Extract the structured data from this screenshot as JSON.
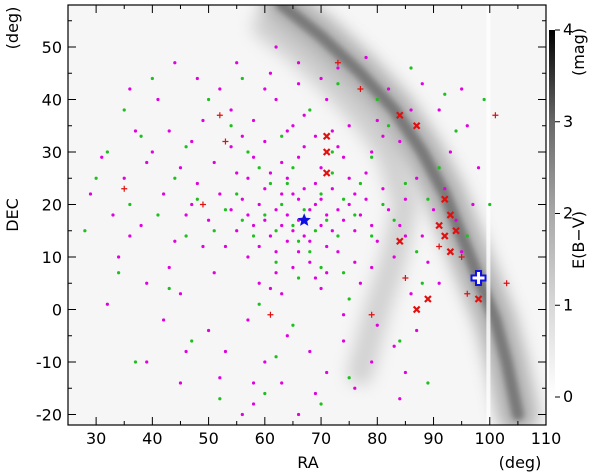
{
  "chart_data": {
    "type": "scatter",
    "xlabel": "RA",
    "ylabel": "DEC",
    "x_unit": "(deg)",
    "y_unit": "(deg)",
    "xlim": [
      25,
      110
    ],
    "ylim": [
      -22,
      58
    ],
    "x_ticks": [
      30,
      40,
      50,
      60,
      70,
      80,
      90,
      100,
      110
    ],
    "y_ticks": [
      -20,
      -10,
      0,
      10,
      20,
      30,
      40,
      50
    ],
    "background": "E(B-V) dust extinction map, greyscale",
    "colorbar": {
      "label": "E(B−V)",
      "unit": "(mag)",
      "range": [
        0,
        4
      ],
      "ticks": [
        0,
        1,
        2,
        3,
        4
      ]
    },
    "colors": {
      "magenta": "#e000e0",
      "green": "#1fbf1f",
      "red": "#e01010",
      "blue": "#1010e0"
    },
    "series": [
      {
        "marker": "dot",
        "color": "magenta",
        "points": [
          [
            66,
            17
          ],
          [
            64,
            18
          ],
          [
            68,
            19
          ],
          [
            65,
            15
          ],
          [
            70,
            16
          ],
          [
            67,
            14
          ],
          [
            63,
            16
          ],
          [
            69,
            20
          ],
          [
            66,
            21
          ],
          [
            71,
            18
          ],
          [
            62,
            19
          ],
          [
            65,
            22
          ],
          [
            68,
            13
          ],
          [
            72,
            15
          ],
          [
            60,
            17
          ],
          [
            64,
            13
          ],
          [
            70,
            21
          ],
          [
            73,
            19
          ],
          [
            61,
            14
          ],
          [
            67,
            23
          ],
          [
            59,
            20
          ],
          [
            63,
            22
          ],
          [
            74,
            17
          ],
          [
            66,
            11
          ],
          [
            71,
            12
          ],
          [
            58,
            16
          ],
          [
            75,
            20
          ],
          [
            62,
            11
          ],
          [
            69,
            24
          ],
          [
            64,
            25
          ],
          [
            57,
            18
          ],
          [
            76,
            15
          ],
          [
            60,
            23
          ],
          [
            72,
            23
          ],
          [
            68,
            9
          ],
          [
            55,
            15
          ],
          [
            77,
            18
          ],
          [
            61,
            26
          ],
          [
            73,
            11
          ],
          [
            65,
            8
          ],
          [
            56,
            21
          ],
          [
            78,
            21
          ],
          [
            59,
            12
          ],
          [
            70,
            27
          ],
          [
            63,
            28
          ],
          [
            54,
            19
          ],
          [
            79,
            16
          ],
          [
            66,
            29
          ],
          [
            75,
            25
          ],
          [
            57,
            10
          ],
          [
            52,
            22
          ],
          [
            80,
            13
          ],
          [
            62,
            7
          ],
          [
            71,
            7
          ],
          [
            55,
            26
          ],
          [
            78,
            26
          ],
          [
            58,
            29
          ],
          [
            67,
            31
          ],
          [
            74,
            29
          ],
          [
            50,
            17
          ],
          [
            82,
            19
          ],
          [
            53,
            12
          ],
          [
            81,
            23
          ],
          [
            60,
            32
          ],
          [
            69,
            33
          ],
          [
            76,
            9
          ],
          [
            48,
            24
          ],
          [
            84,
            16
          ],
          [
            64,
            34
          ],
          [
            72,
            34
          ],
          [
            51,
            28
          ],
          [
            79,
            30
          ],
          [
            56,
            33
          ],
          [
            46,
            18
          ],
          [
            85,
            21
          ],
          [
            63,
            3
          ],
          [
            70,
            4
          ],
          [
            49,
            12
          ],
          [
            83,
            10
          ],
          [
            58,
            36
          ],
          [
            67,
            37
          ],
          [
            75,
            35
          ],
          [
            45,
            27
          ],
          [
            87,
            25
          ],
          [
            54,
            38
          ],
          [
            80,
            36
          ],
          [
            62,
            40
          ],
          [
            44,
            13
          ],
          [
            88,
            14
          ],
          [
            71,
            40
          ],
          [
            47,
            32
          ],
          [
            84,
            32
          ],
          [
            59,
            5
          ],
          [
            77,
            5
          ],
          [
            42,
            22
          ],
          [
            90,
            19
          ],
          [
            52,
            42
          ],
          [
            66,
            43
          ],
          [
            40,
            30
          ],
          [
            86,
            38
          ],
          [
            57,
            -2
          ],
          [
            74,
            -1
          ],
          [
            43,
            8
          ],
          [
            89,
            9
          ],
          [
            38,
            16
          ],
          [
            92,
            23
          ],
          [
            61,
            45
          ],
          [
            49,
            36
          ],
          [
            82,
            42
          ],
          [
            37,
            34
          ],
          [
            93,
            30
          ],
          [
            64,
            -5
          ],
          [
            68,
            -8
          ],
          [
            45,
            3
          ],
          [
            86,
            3
          ],
          [
            35,
            25
          ],
          [
            94,
            17
          ],
          [
            55,
            47
          ],
          [
            73,
            46
          ],
          [
            41,
            40
          ],
          [
            88,
            43
          ],
          [
            33,
            18
          ],
          [
            60,
            -10
          ],
          [
            71,
            -12
          ],
          [
            50,
            -4
          ],
          [
            80,
            -3
          ],
          [
            39,
            5
          ],
          [
            91,
            5
          ],
          [
            31,
            29
          ],
          [
            96,
            35
          ],
          [
            48,
            44
          ],
          [
            78,
            48
          ],
          [
            36,
            42
          ],
          [
            63,
            -14
          ],
          [
            69,
            -16
          ],
          [
            46,
            -8
          ],
          [
            83,
            -7
          ],
          [
            34,
            10
          ],
          [
            95,
            11
          ],
          [
            29,
            22
          ],
          [
            98,
            27
          ],
          [
            58,
            -18
          ],
          [
            66,
            -20
          ],
          [
            42,
            -2
          ],
          [
            87,
            -4
          ],
          [
            52,
            -13
          ],
          [
            76,
            -15
          ],
          [
            39,
            -10
          ],
          [
            85,
            -12
          ],
          [
            32,
            1
          ],
          [
            44,
            47
          ],
          [
            62,
            50
          ],
          [
            81,
            33
          ],
          [
            54,
            31
          ],
          [
            65,
            35
          ],
          [
            73,
            31
          ],
          [
            57,
            25
          ],
          [
            76,
            22
          ],
          [
            61,
            4
          ],
          [
            69,
            6
          ],
          [
            47,
            20
          ],
          [
            85,
            14
          ],
          [
            51,
            7
          ],
          [
            79,
            8
          ],
          [
            43,
            34
          ],
          [
            91,
            38
          ],
          [
            39,
            28
          ],
          [
            95,
            42
          ],
          [
            36,
            14
          ],
          [
            97,
            20
          ],
          [
            70,
            44
          ],
          [
            60,
            42
          ],
          [
            66,
            47
          ],
          [
            53,
            -8
          ],
          [
            74,
            -6
          ],
          [
            58,
            -14
          ],
          [
            79,
            -10
          ],
          [
            45,
            -14
          ],
          [
            84,
            -17
          ],
          [
            56,
            -20
          ]
        ]
      },
      {
        "marker": "dot",
        "color": "green",
        "points": [
          [
            67,
            19
          ],
          [
            65,
            16
          ],
          [
            69,
            15
          ],
          [
            63,
            20
          ],
          [
            71,
            17
          ],
          [
            66,
            13
          ],
          [
            62,
            15
          ],
          [
            70,
            22
          ],
          [
            64,
            24
          ],
          [
            73,
            14
          ],
          [
            60,
            18
          ],
          [
            68,
            11
          ],
          [
            74,
            21
          ],
          [
            58,
            14
          ],
          [
            72,
            26
          ],
          [
            61,
            24
          ],
          [
            76,
            18
          ],
          [
            56,
            17
          ],
          [
            65,
            27
          ],
          [
            79,
            14
          ],
          [
            55,
            22
          ],
          [
            70,
            8
          ],
          [
            62,
            9
          ],
          [
            77,
            24
          ],
          [
            53,
            19
          ],
          [
            81,
            20
          ],
          [
            59,
            27
          ],
          [
            66,
            6
          ],
          [
            74,
            7
          ],
          [
            51,
            15
          ],
          [
            83,
            17
          ],
          [
            57,
            30
          ],
          [
            72,
            30
          ],
          [
            48,
            21
          ],
          [
            85,
            24
          ],
          [
            63,
            33
          ],
          [
            79,
            29
          ],
          [
            46,
            14
          ],
          [
            87,
            11
          ],
          [
            54,
            35
          ],
          [
            68,
            38
          ],
          [
            44,
            25
          ],
          [
            89,
            21
          ],
          [
            59,
            1
          ],
          [
            75,
            2
          ],
          [
            41,
            18
          ],
          [
            91,
            27
          ],
          [
            50,
            40
          ],
          [
            80,
            40
          ],
          [
            38,
            33
          ],
          [
            94,
            34
          ],
          [
            65,
            -3
          ],
          [
            43,
            4
          ],
          [
            88,
            5
          ],
          [
            36,
            20
          ],
          [
            96,
            14
          ],
          [
            56,
            44
          ],
          [
            73,
            43
          ],
          [
            32,
            30
          ],
          [
            99,
            40
          ],
          [
            62,
            -9
          ],
          [
            47,
            -6
          ],
          [
            84,
            -6
          ],
          [
            34,
            7
          ],
          [
            97,
            6
          ],
          [
            30,
            25
          ],
          [
            40,
            44
          ],
          [
            86,
            46
          ],
          [
            60,
            -16
          ],
          [
            75,
            -13
          ],
          [
            37,
            -10
          ],
          [
            89,
            -14
          ],
          [
            28,
            15
          ],
          [
            100,
            20
          ],
          [
            52,
            -17
          ],
          [
            70,
            -18
          ],
          [
            46,
            31
          ],
          [
            82,
            35
          ],
          [
            35,
            38
          ],
          [
            92,
            41
          ]
        ]
      },
      {
        "marker": "plus",
        "color": "red",
        "points": [
          [
            73,
            47
          ],
          [
            77,
            42
          ],
          [
            101,
            37
          ],
          [
            52,
            37
          ],
          [
            53,
            32
          ],
          [
            35,
            23
          ],
          [
            49,
            20
          ],
          [
            91,
            12
          ],
          [
            95,
            10
          ],
          [
            61,
            -1
          ],
          [
            79,
            -1
          ],
          [
            85,
            6
          ],
          [
            96,
            3
          ],
          [
            103,
            5
          ]
        ]
      },
      {
        "marker": "cross",
        "color": "red",
        "points": [
          [
            71,
            33
          ],
          [
            71,
            30
          ],
          [
            71,
            26
          ],
          [
            84,
            37
          ],
          [
            87,
            35
          ],
          [
            92,
            21
          ],
          [
            93,
            18
          ],
          [
            91,
            16
          ],
          [
            92,
            14
          ],
          [
            93,
            11
          ],
          [
            94,
            15
          ],
          [
            84,
            13
          ],
          [
            87,
            0
          ],
          [
            89,
            2
          ],
          [
            98,
            2
          ]
        ]
      },
      {
        "marker": "star",
        "color": "blue",
        "points": [
          [
            67,
            17
          ]
        ]
      },
      {
        "marker": "open-cross",
        "color": "blue",
        "points": [
          [
            98,
            6
          ]
        ]
      }
    ]
  }
}
